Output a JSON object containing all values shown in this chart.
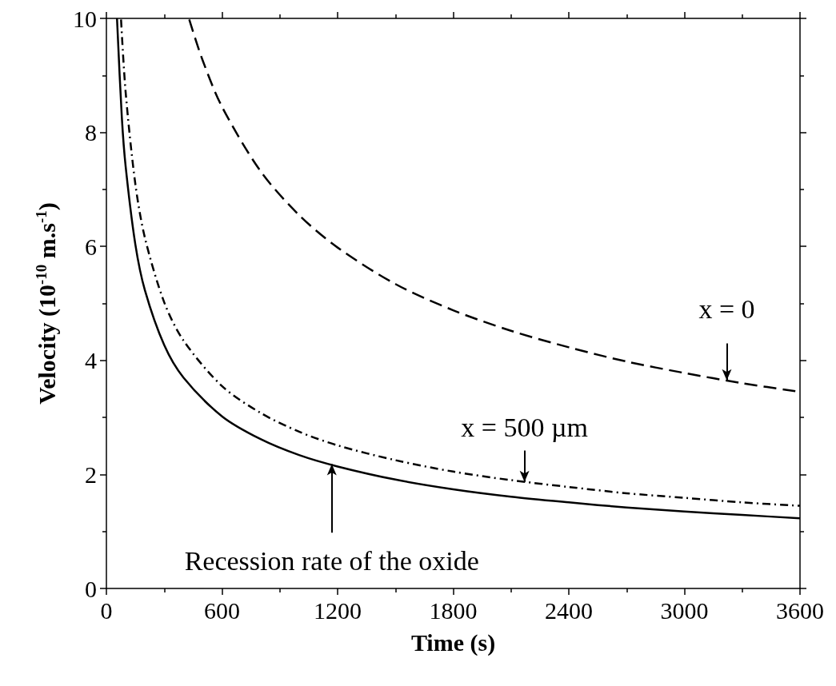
{
  "chart_data": {
    "type": "line",
    "xlabel": "Time (s)",
    "ylabel": "Velocity (10$^{-10}$ m.s$^{-1}$)",
    "xlim": [
      0,
      3600
    ],
    "xticks": [
      0,
      600,
      1200,
      1800,
      2400,
      3000,
      3600
    ],
    "ylim": [
      0,
      10
    ],
    "yticks": [
      0,
      2,
      4,
      6,
      8,
      10
    ],
    "grid": false,
    "marker": "none",
    "series": [
      {
        "color": "#000000",
        "line_style": "solid",
        "x": [
          55,
          80,
          100,
          150,
          200,
          300,
          400,
          600,
          800,
          1000,
          1200,
          1500,
          1800,
          2100,
          2400,
          2700,
          3000,
          3300,
          3600
        ],
        "values": [
          10.0,
          8.27,
          7.4,
          6.04,
          5.23,
          4.27,
          3.7,
          3.02,
          2.62,
          2.34,
          2.14,
          1.91,
          1.74,
          1.61,
          1.51,
          1.42,
          1.35,
          1.29,
          1.23
        ]
      },
      {
        "color": "#000000",
        "line_style": "dotted",
        "x": [
          76,
          100,
          150,
          200,
          300,
          400,
          600,
          800,
          1000,
          1200,
          1500,
          1800,
          2100,
          2400,
          2700,
          3000,
          3300,
          3600
        ],
        "values": [
          9.98,
          8.7,
          7.1,
          6.15,
          5.02,
          4.35,
          3.55,
          3.08,
          2.75,
          2.51,
          2.25,
          2.05,
          1.9,
          1.78,
          1.67,
          1.59,
          1.51,
          1.45
        ]
      },
      {
        "color": "#000000",
        "line_style": "dashed",
        "x": [
          430,
          500,
          600,
          800,
          1000,
          1200,
          1500,
          1800,
          2100,
          2400,
          2700,
          3000,
          3300,
          3600
        ],
        "values": [
          9.98,
          9.26,
          8.45,
          7.32,
          6.55,
          5.98,
          5.34,
          4.88,
          4.52,
          4.23,
          3.98,
          3.78,
          3.6,
          3.45
        ]
      }
    ],
    "annotations": [
      {
        "text": "x = 0",
        "x": 3220,
        "y": 3.65
      },
      {
        "text": "x = 500 µm",
        "x": 2170,
        "y": 1.87
      },
      {
        "text": "Recession rate of the oxide",
        "x": 1170,
        "y": 2.18
      }
    ]
  }
}
